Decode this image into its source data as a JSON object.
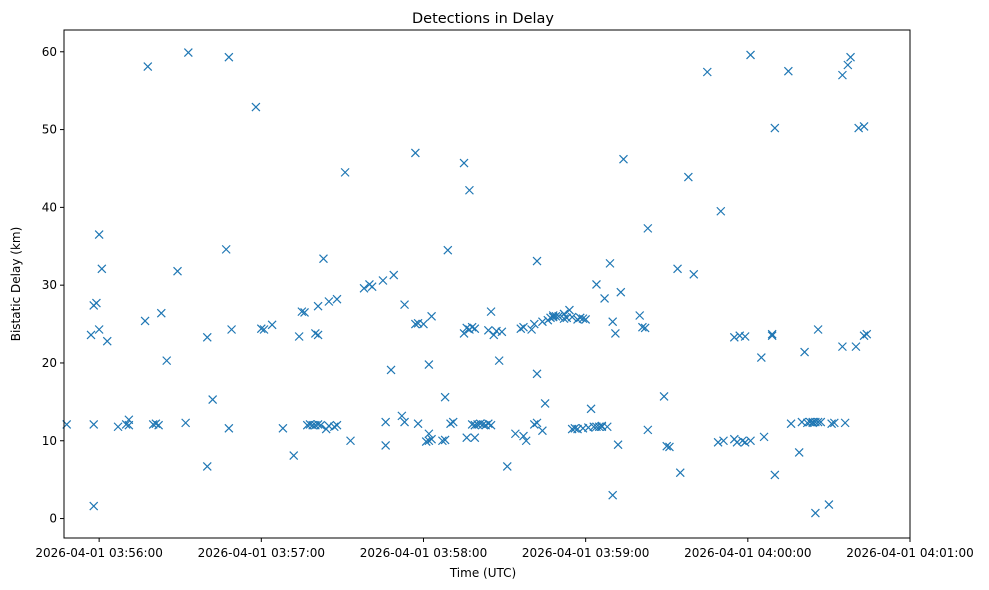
{
  "chart_data": {
    "type": "scatter",
    "title": "Detections in Delay",
    "xlabel": "Time (UTC)",
    "ylabel": "Bistatic Delay (km)",
    "x_tick_labels": [
      "2026-04-01 03:56:00",
      "2026-04-01 03:57:00",
      "2026-04-01 03:58:00",
      "2026-04-01 03:59:00",
      "2026-04-01 04:00:00",
      "2026-04-01 04:01:00"
    ],
    "xlim": [
      "2026-04-01 03:55:47",
      "2026-04-01 04:01:00"
    ],
    "ylim": [
      -2.5,
      62.8
    ],
    "y_ticks": [
      0,
      10,
      20,
      30,
      40,
      50,
      60
    ],
    "grid": false,
    "marker": "x",
    "color": "#1f77b4",
    "points": [
      [
        "03:55:48",
        12.1
      ],
      [
        "03:55:57",
        23.6
      ],
      [
        "03:55:58",
        12.1
      ],
      [
        "03:55:58",
        27.4
      ],
      [
        "03:55:58",
        1.6
      ],
      [
        "03:55:59",
        27.7
      ],
      [
        "03:56:00",
        24.3
      ],
      [
        "03:56:00",
        36.5
      ],
      [
        "03:56:01",
        32.1
      ],
      [
        "03:56:03",
        22.8
      ],
      [
        "03:56:07",
        11.8
      ],
      [
        "03:56:10",
        12.1
      ],
      [
        "03:56:11",
        12.7
      ],
      [
        "03:56:11",
        12.0
      ],
      [
        "03:56:17",
        25.4
      ],
      [
        "03:56:18",
        58.1
      ],
      [
        "03:56:20",
        12.1
      ],
      [
        "03:56:21",
        12.2
      ],
      [
        "03:56:22",
        12.0
      ],
      [
        "03:56:23",
        26.4
      ],
      [
        "03:56:25",
        20.3
      ],
      [
        "03:56:29",
        31.8
      ],
      [
        "03:56:32",
        12.3
      ],
      [
        "03:56:33",
        59.9
      ],
      [
        "03:56:40",
        23.3
      ],
      [
        "03:56:40",
        6.7
      ],
      [
        "03:56:42",
        15.3
      ],
      [
        "03:56:47",
        34.6
      ],
      [
        "03:56:48",
        11.6
      ],
      [
        "03:56:48",
        59.3
      ],
      [
        "03:56:49",
        24.3
      ],
      [
        "03:56:58",
        52.9
      ],
      [
        "03:57:00",
        24.4
      ],
      [
        "03:57:01",
        24.3
      ],
      [
        "03:57:04",
        24.9
      ],
      [
        "03:57:08",
        11.6
      ],
      [
        "03:57:12",
        8.1
      ],
      [
        "03:57:14",
        23.4
      ],
      [
        "03:57:15",
        26.6
      ],
      [
        "03:57:16",
        26.5
      ],
      [
        "03:57:17",
        12.0
      ],
      [
        "03:57:18",
        12.1
      ],
      [
        "03:57:19",
        12.0
      ],
      [
        "03:57:20",
        23.8
      ],
      [
        "03:57:20",
        12.0
      ],
      [
        "03:57:21",
        23.6
      ],
      [
        "03:57:21",
        12.1
      ],
      [
        "03:57:21",
        27.3
      ],
      [
        "03:57:22",
        12.0
      ],
      [
        "03:57:23",
        33.4
      ],
      [
        "03:57:24",
        11.5
      ],
      [
        "03:57:25",
        27.9
      ],
      [
        "03:57:25",
        11.9
      ],
      [
        "03:57:27",
        11.8
      ],
      [
        "03:57:28",
        28.2
      ],
      [
        "03:57:28",
        12.0
      ],
      [
        "03:57:31",
        44.5
      ],
      [
        "03:57:33",
        10.0
      ],
      [
        "03:57:38",
        29.6
      ],
      [
        "03:57:40",
        30.1
      ],
      [
        "03:57:41",
        29.8
      ],
      [
        "03:57:45",
        30.6
      ],
      [
        "03:57:46",
        12.4
      ],
      [
        "03:57:46",
        9.4
      ],
      [
        "03:57:48",
        19.1
      ],
      [
        "03:57:49",
        31.3
      ],
      [
        "03:57:52",
        13.2
      ],
      [
        "03:57:53",
        27.5
      ],
      [
        "03:57:53",
        12.4
      ],
      [
        "03:57:57",
        25.0
      ],
      [
        "03:57:57",
        47.0
      ],
      [
        "03:57:58",
        12.2
      ],
      [
        "03:57:58",
        25.1
      ],
      [
        "03:58:00",
        25.0
      ],
      [
        "03:58:01",
        9.9
      ],
      [
        "03:58:02",
        10.0
      ],
      [
        "03:58:02",
        19.8
      ],
      [
        "03:58:02",
        10.9
      ],
      [
        "03:58:03",
        26.0
      ],
      [
        "03:58:03",
        10.2
      ],
      [
        "03:58:07",
        10.0
      ],
      [
        "03:58:08",
        10.1
      ],
      [
        "03:58:08",
        15.6
      ],
      [
        "03:58:09",
        34.5
      ],
      [
        "03:58:10",
        12.2
      ],
      [
        "03:58:11",
        12.4
      ],
      [
        "03:58:15",
        45.7
      ],
      [
        "03:58:15",
        23.8
      ],
      [
        "03:58:16",
        10.4
      ],
      [
        "03:58:16",
        24.5
      ],
      [
        "03:58:17",
        24.3
      ],
      [
        "03:58:17",
        42.2
      ],
      [
        "03:58:18",
        24.6
      ],
      [
        "03:58:18",
        12.1
      ],
      [
        "03:58:19",
        24.4
      ],
      [
        "03:58:19",
        10.4
      ],
      [
        "03:58:19",
        12.0
      ],
      [
        "03:58:20",
        12.1
      ],
      [
        "03:58:21",
        12.2
      ],
      [
        "03:58:22",
        12.1
      ],
      [
        "03:58:23",
        12.0
      ],
      [
        "03:58:24",
        12.2
      ],
      [
        "03:58:24",
        24.2
      ],
      [
        "03:58:25",
        12.0
      ],
      [
        "03:58:25",
        26.6
      ],
      [
        "03:58:26",
        23.6
      ],
      [
        "03:58:27",
        24.1
      ],
      [
        "03:58:28",
        20.3
      ],
      [
        "03:58:29",
        24.0
      ],
      [
        "03:58:31",
        6.7
      ],
      [
        "03:58:34",
        10.9
      ],
      [
        "03:58:36",
        24.4
      ],
      [
        "03:58:37",
        10.6
      ],
      [
        "03:58:37",
        24.6
      ],
      [
        "03:58:38",
        10.0
      ],
      [
        "03:58:40",
        24.3
      ],
      [
        "03:58:41",
        12.1
      ],
      [
        "03:58:41",
        25.0
      ],
      [
        "03:58:42",
        12.3
      ],
      [
        "03:58:42",
        18.6
      ],
      [
        "03:58:42",
        33.1
      ],
      [
        "03:58:44",
        25.3
      ],
      [
        "03:58:44",
        11.3
      ],
      [
        "03:58:45",
        14.8
      ],
      [
        "03:58:46",
        25.5
      ],
      [
        "03:58:47",
        25.8
      ],
      [
        "03:58:48",
        26.1
      ],
      [
        "03:58:48",
        25.9
      ],
      [
        "03:58:49",
        26.0
      ],
      [
        "03:58:50",
        26.0
      ],
      [
        "03:58:52",
        26.3
      ],
      [
        "03:58:52",
        25.7
      ],
      [
        "03:58:53",
        25.8
      ],
      [
        "03:58:54",
        26.8
      ],
      [
        "03:58:55",
        25.9
      ],
      [
        "03:58:55",
        11.5
      ],
      [
        "03:58:56",
        11.6
      ],
      [
        "03:58:57",
        25.6
      ],
      [
        "03:58:57",
        11.5
      ],
      [
        "03:58:58",
        25.8
      ],
      [
        "03:58:59",
        25.7
      ],
      [
        "03:58:59",
        11.6
      ],
      [
        "03:59:00",
        25.6
      ],
      [
        "03:59:01",
        11.7
      ],
      [
        "03:59:02",
        14.1
      ],
      [
        "03:59:03",
        11.8
      ],
      [
        "03:59:04",
        11.8
      ],
      [
        "03:59:04",
        30.1
      ],
      [
        "03:59:05",
        11.8
      ],
      [
        "03:59:06",
        11.9
      ],
      [
        "03:59:06",
        11.8
      ],
      [
        "03:59:07",
        28.3
      ],
      [
        "03:59:08",
        11.8
      ],
      [
        "03:59:09",
        32.8
      ],
      [
        "03:59:10",
        25.3
      ],
      [
        "03:59:10",
        3.0
      ],
      [
        "03:59:11",
        23.8
      ],
      [
        "03:59:12",
        9.5
      ],
      [
        "03:59:13",
        29.1
      ],
      [
        "03:59:14",
        46.2
      ],
      [
        "03:59:20",
        26.1
      ],
      [
        "03:59:21",
        24.6
      ],
      [
        "03:59:22",
        24.5
      ],
      [
        "03:59:23",
        37.3
      ],
      [
        "03:59:23",
        11.4
      ],
      [
        "03:59:29",
        15.7
      ],
      [
        "03:59:30",
        9.3
      ],
      [
        "03:59:31",
        9.2
      ],
      [
        "03:59:34",
        32.1
      ],
      [
        "03:59:35",
        5.9
      ],
      [
        "03:59:38",
        43.9
      ],
      [
        "03:59:40",
        31.4
      ],
      [
        "03:59:45",
        57.4
      ],
      [
        "03:59:49",
        9.8
      ],
      [
        "03:59:50",
        39.5
      ],
      [
        "03:59:51",
        10.0
      ],
      [
        "03:59:55",
        10.2
      ],
      [
        "03:59:55",
        23.3
      ],
      [
        "03:59:56",
        9.8
      ],
      [
        "03:59:57",
        23.5
      ],
      [
        "03:59:58",
        10.0
      ],
      [
        "03:59:59",
        23.4
      ],
      [
        "03:59:59",
        9.8
      ],
      [
        "04:00:01",
        10.0
      ],
      [
        "04:00:01",
        59.6
      ],
      [
        "04:00:05",
        20.7
      ],
      [
        "04:00:06",
        10.5
      ],
      [
        "04:00:09",
        23.7
      ],
      [
        "04:00:09",
        23.5
      ],
      [
        "04:00:10",
        50.2
      ],
      [
        "04:00:10",
        5.6
      ],
      [
        "04:00:15",
        57.5
      ],
      [
        "04:00:16",
        12.2
      ],
      [
        "04:00:19",
        8.5
      ],
      [
        "04:00:20",
        12.4
      ],
      [
        "04:00:21",
        21.4
      ],
      [
        "04:00:22",
        12.3
      ],
      [
        "04:00:23",
        12.4
      ],
      [
        "04:00:24",
        12.4
      ],
      [
        "04:00:24",
        12.3
      ],
      [
        "04:00:25",
        12.4
      ],
      [
        "04:00:25",
        0.7
      ],
      [
        "04:00:26",
        24.3
      ],
      [
        "04:00:26",
        12.4
      ],
      [
        "04:00:27",
        12.4
      ],
      [
        "04:00:30",
        1.8
      ],
      [
        "04:00:31",
        12.2
      ],
      [
        "04:00:32",
        12.3
      ],
      [
        "04:00:35",
        22.1
      ],
      [
        "04:00:35",
        57.0
      ],
      [
        "04:00:36",
        12.3
      ],
      [
        "04:00:37",
        58.3
      ],
      [
        "04:00:38",
        59.3
      ],
      [
        "04:00:40",
        22.1
      ],
      [
        "04:00:41",
        50.2
      ],
      [
        "04:00:43",
        23.5
      ],
      [
        "04:00:43",
        50.4
      ],
      [
        "04:00:44",
        23.7
      ]
    ]
  }
}
